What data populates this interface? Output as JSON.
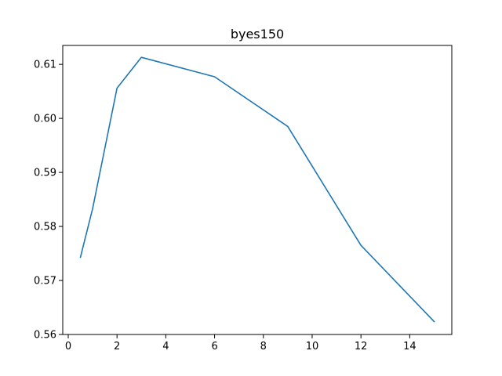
{
  "chart_data": {
    "type": "line",
    "title": "byes150",
    "xlabel": "",
    "ylabel": "",
    "xlim": [
      -0.225,
      15.725
    ],
    "ylim": [
      0.56,
      0.6135
    ],
    "grid": false,
    "x_ticks": [
      0,
      2,
      4,
      6,
      8,
      10,
      12,
      14
    ],
    "y_ticks": [
      0.56,
      0.57,
      0.58,
      0.59,
      0.6,
      0.61
    ],
    "series": [
      {
        "color": "#1f77b4",
        "x": [
          0.5,
          1,
          2,
          3,
          6,
          9,
          12,
          15
        ],
        "y": [
          0.5743,
          0.5833,
          0.6056,
          0.6113,
          0.6077,
          0.5985,
          0.5765,
          0.5624
        ]
      }
    ]
  }
}
